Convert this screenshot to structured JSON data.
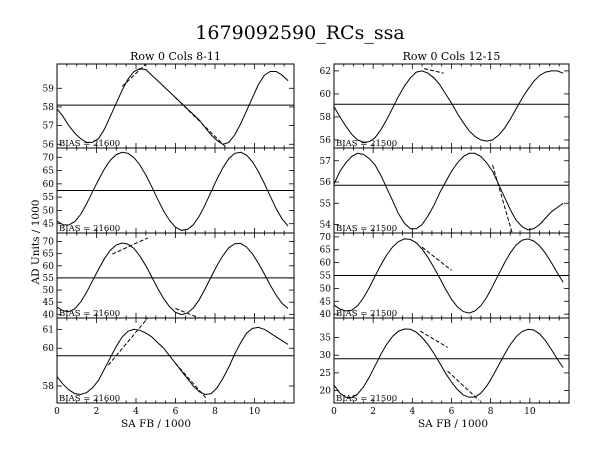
{
  "figure": {
    "title": "1679092590_RCs_ssa",
    "ylabel": "AD Units / 1000",
    "xlabel": "SA FB / 1000"
  },
  "chart_data": [
    {
      "type": "line",
      "column": "left",
      "subtitle": "Row   0   Cols   8-11",
      "bias_label": "BIAS = 21600",
      "xlim": [
        0,
        12
      ],
      "x_ticks": [
        0,
        2,
        4,
        6,
        8,
        10
      ],
      "ylim": [
        55.8,
        60.3
      ],
      "y_ticks": [
        56,
        57,
        58,
        59
      ],
      "reference_y": 58.1,
      "series": [
        {
          "x": [
            0,
            0.3,
            0.6,
            0.9,
            1.2,
            1.5,
            1.8,
            2.1,
            2.4,
            2.7,
            3.0,
            3.3,
            3.6,
            3.9,
            4.2,
            4.5,
            4.8,
            5.1,
            5.4,
            5.7,
            6.0,
            6.3,
            6.6,
            6.9,
            7.2,
            7.5,
            7.8,
            8.1,
            8.4,
            8.7,
            9.0,
            9.3,
            9.6,
            9.9,
            10.2,
            10.5,
            10.8,
            11.1,
            11.4,
            11.7
          ],
          "y": [
            57.9,
            57.5,
            57.0,
            56.6,
            56.3,
            56.1,
            56.1,
            56.3,
            56.8,
            57.5,
            58.2,
            58.9,
            59.5,
            59.9,
            60.05,
            60.0,
            59.7,
            59.4,
            59.1,
            58.8,
            58.5,
            58.2,
            57.9,
            57.6,
            57.3,
            56.9,
            56.5,
            56.2,
            56.0,
            56.1,
            56.5,
            57.1,
            57.8,
            58.5,
            59.2,
            59.7,
            59.9,
            59.9,
            59.7,
            59.4
          ]
        },
        {
          "x": [
            3.3,
            4.5
          ],
          "y": [
            59.1,
            60.3
          ],
          "dashed": true
        },
        {
          "x": [
            6.0,
            8.6
          ],
          "y": [
            58.5,
            55.8
          ],
          "dashed": true
        }
      ]
    },
    {
      "type": "line",
      "column": "left",
      "bias_label": "BIAS = 21600",
      "xlim": [
        0,
        12
      ],
      "x_ticks": [
        0,
        2,
        4,
        6,
        8,
        10
      ],
      "ylim": [
        41.5,
        73.5
      ],
      "y_ticks": [
        45,
        50,
        55,
        60,
        65,
        70
      ],
      "reference_y": 57.5,
      "series": [
        {
          "x": [
            0,
            0.3,
            0.6,
            0.9,
            1.2,
            1.5,
            1.8,
            2.1,
            2.4,
            2.7,
            3.0,
            3.3,
            3.6,
            3.9,
            4.2,
            4.5,
            4.8,
            5.1,
            5.4,
            5.7,
            6.0,
            6.3,
            6.6,
            6.9,
            7.2,
            7.5,
            7.8,
            8.1,
            8.4,
            8.7,
            9.0,
            9.3,
            9.6,
            9.9,
            10.2,
            10.5,
            10.8,
            11.1,
            11.4,
            11.7
          ],
          "y": [
            46,
            44.6,
            44.5,
            45.8,
            48.5,
            52.5,
            57,
            61.5,
            65.6,
            68.9,
            71,
            71.9,
            71.5,
            69.9,
            67.1,
            63.3,
            58.9,
            54.2,
            49.8,
            46.2,
            43.7,
            42.5,
            42.8,
            44.6,
            47.8,
            52.1,
            57,
            61.8,
            66.1,
            69.5,
            71.5,
            71.9,
            70.8,
            68.3,
            64.6,
            60.1,
            55.3,
            50.6,
            46.8,
            44.1
          ]
        }
      ]
    },
    {
      "type": "line",
      "column": "left",
      "bias_label": "BIAS = 21600",
      "xlim": [
        0,
        12
      ],
      "x_ticks": [
        0,
        2,
        4,
        6,
        8,
        10
      ],
      "ylim": [
        38.5,
        73.5
      ],
      "y_ticks": [
        40,
        45,
        50,
        55,
        60,
        65,
        70
      ],
      "reference_y": 55,
      "series": [
        {
          "x": [
            0,
            0.3,
            0.6,
            0.9,
            1.2,
            1.5,
            1.8,
            2.1,
            2.4,
            2.7,
            3.0,
            3.3,
            3.6,
            3.9,
            4.2,
            4.5,
            4.8,
            5.1,
            5.4,
            5.7,
            6.0,
            6.3,
            6.6,
            6.9,
            7.2,
            7.5,
            7.8,
            8.1,
            8.4,
            8.7,
            9.0,
            9.3,
            9.6,
            9.9,
            10.2,
            10.5,
            10.8,
            11.1,
            11.4,
            11.7
          ],
          "y": [
            43,
            41.5,
            41.1,
            42.3,
            45.1,
            49.1,
            53.8,
            58.5,
            62.9,
            66.4,
            68.6,
            69.4,
            68.9,
            67.1,
            64,
            60,
            55.4,
            50.7,
            46.5,
            43.1,
            40.8,
            39.9,
            40.5,
            42.6,
            46,
            50.5,
            55.4,
            60.1,
            64.2,
            67.4,
            69.1,
            69.2,
            67.7,
            64.9,
            61,
            56.6,
            52,
            47.8,
            44.5,
            42.4
          ]
        },
        {
          "x": [
            2.8,
            4.6
          ],
          "y": [
            64.8,
            71.5
          ],
          "dashed": true
        },
        {
          "x": [
            6.0,
            7.2
          ],
          "y": [
            42.4,
            38.5
          ],
          "dashed": true
        }
      ]
    },
    {
      "type": "line",
      "column": "left",
      "bias_label": "BIAS = 21600",
      "xlim": [
        0,
        12
      ],
      "x_ticks": [
        0,
        2,
        4,
        6,
        8,
        10
      ],
      "ylim": [
        57.1,
        61.6
      ],
      "y_ticks": [
        58,
        60,
        61
      ],
      "reference_y": 59.6,
      "series": [
        {
          "x": [
            0,
            0.3,
            0.6,
            0.9,
            1.2,
            1.5,
            1.8,
            2.1,
            2.4,
            2.7,
            3.0,
            3.3,
            3.6,
            3.9,
            4.2,
            4.5,
            4.8,
            5.1,
            5.4,
            5.7,
            6.0,
            6.3,
            6.6,
            6.9,
            7.2,
            7.5,
            7.8,
            8.1,
            8.4,
            8.7,
            9.0,
            9.3,
            9.6,
            9.9,
            10.2,
            10.5,
            10.8,
            11.1,
            11.4,
            11.7
          ],
          "y": [
            58.5,
            58.1,
            57.8,
            57.6,
            57.55,
            57.65,
            57.9,
            58.3,
            58.9,
            59.5,
            60.1,
            60.6,
            60.9,
            61.0,
            60.95,
            60.8,
            60.6,
            60.3,
            60.0,
            59.6,
            59.2,
            58.8,
            58.4,
            58.0,
            57.7,
            57.55,
            57.6,
            57.9,
            58.4,
            59.0,
            59.7,
            60.3,
            60.8,
            61.05,
            61.1,
            61.0,
            60.8,
            60.6,
            60.4,
            60.2
          ]
        },
        {
          "x": [
            2.6,
            4.6
          ],
          "y": [
            59.1,
            61.6
          ],
          "dashed": true
        },
        {
          "x": [
            6.0,
            7.6
          ],
          "y": [
            59.2,
            57.3
          ],
          "dashed": true
        }
      ]
    },
    {
      "type": "line",
      "column": "right",
      "subtitle": "Row   0   Cols   12-15",
      "bias_label": "BIAS = 21500",
      "xlim": [
        0,
        12
      ],
      "x_ticks": [
        0,
        2,
        4,
        6,
        8,
        10
      ],
      "ylim": [
        55.3,
        62.6
      ],
      "y_ticks": [
        56,
        58,
        60,
        62
      ],
      "reference_y": 59.1,
      "series": [
        {
          "x": [
            0,
            0.3,
            0.6,
            0.9,
            1.2,
            1.5,
            1.8,
            2.1,
            2.4,
            2.7,
            3.0,
            3.3,
            3.6,
            3.9,
            4.2,
            4.5,
            4.8,
            5.1,
            5.4,
            5.7,
            6.0,
            6.3,
            6.6,
            6.9,
            7.2,
            7.5,
            7.8,
            8.1,
            8.4,
            8.7,
            9.0,
            9.3,
            9.6,
            9.9,
            10.2,
            10.5,
            10.8,
            11.1,
            11.4,
            11.7
          ],
          "y": [
            58.9,
            58.0,
            57.2,
            56.5,
            56.0,
            55.8,
            55.85,
            56.2,
            56.9,
            57.8,
            58.8,
            59.8,
            60.7,
            61.4,
            61.9,
            62.0,
            61.8,
            61.4,
            60.8,
            60.0,
            59.2,
            58.3,
            57.5,
            56.8,
            56.3,
            56.0,
            55.9,
            56.0,
            56.4,
            57.0,
            57.8,
            58.7,
            59.6,
            60.4,
            61.1,
            61.6,
            61.9,
            62.0,
            62.0,
            61.8
          ]
        },
        {
          "x": [
            4.6,
            5.6
          ],
          "y": [
            62.2,
            61.8
          ],
          "dashed": true
        }
      ]
    },
    {
      "type": "line",
      "column": "right",
      "bias_label": "BIAS = 21500",
      "xlim": [
        0,
        12
      ],
      "x_ticks": [
        0,
        2,
        4,
        6,
        8,
        10
      ],
      "ylim": [
        53.6,
        57.6
      ],
      "y_ticks": [
        54,
        55,
        56,
        57
      ],
      "reference_y": 55.85,
      "series": [
        {
          "x": [
            0,
            0.3,
            0.6,
            0.9,
            1.2,
            1.5,
            1.8,
            2.1,
            2.4,
            2.7,
            3.0,
            3.3,
            3.6,
            3.9,
            4.2,
            4.5,
            4.8,
            5.1,
            5.4,
            5.7,
            6.0,
            6.3,
            6.6,
            6.9,
            7.2,
            7.5,
            7.8,
            8.1,
            8.4,
            8.7,
            9.0,
            9.3,
            9.6,
            9.9,
            10.2,
            10.5,
            10.8,
            11.1,
            11.4,
            11.7
          ],
          "y": [
            55.9,
            56.5,
            56.9,
            57.2,
            57.35,
            57.3,
            57.1,
            56.8,
            56.3,
            55.7,
            55.1,
            54.5,
            54.05,
            53.8,
            53.8,
            54.0,
            54.4,
            54.9,
            55.5,
            56.0,
            56.5,
            56.9,
            57.2,
            57.35,
            57.35,
            57.2,
            56.9,
            56.5,
            55.9,
            55.3,
            54.7,
            54.2,
            53.9,
            53.75,
            53.8,
            54.0,
            54.3,
            54.6,
            54.8,
            55.0
          ]
        },
        {
          "x": [
            8.1,
            9.1
          ],
          "y": [
            56.8,
            53.6
          ],
          "dashed": true
        }
      ]
    },
    {
      "type": "line",
      "column": "right",
      "bias_label": "BIAS = 21500",
      "xlim": [
        0,
        12
      ],
      "x_ticks": [
        0,
        2,
        4,
        6,
        8,
        10
      ],
      "ylim": [
        38.5,
        71.5
      ],
      "y_ticks": [
        40,
        45,
        50,
        55,
        60,
        65,
        70
      ],
      "reference_y": 55,
      "series": [
        {
          "x": [
            0,
            0.3,
            0.6,
            0.9,
            1.2,
            1.5,
            1.8,
            2.1,
            2.4,
            2.7,
            3.0,
            3.3,
            3.6,
            3.9,
            4.2,
            4.5,
            4.8,
            5.1,
            5.4,
            5.7,
            6.0,
            6.3,
            6.6,
            6.9,
            7.2,
            7.5,
            7.8,
            8.1,
            8.4,
            8.7,
            9.0,
            9.3,
            9.6,
            9.9,
            10.2,
            10.5,
            10.8,
            11.1,
            11.4,
            11.7
          ],
          "y": [
            43.5,
            42.0,
            41.2,
            41.5,
            43.2,
            46.3,
            50.3,
            54.8,
            59.2,
            63.1,
            66.2,
            68.2,
            69.2,
            69.0,
            67.7,
            65.3,
            62.0,
            58.1,
            53.9,
            49.7,
            45.8,
            42.8,
            41.0,
            40.4,
            41.2,
            43.3,
            46.6,
            50.8,
            55.3,
            59.8,
            63.8,
            66.8,
            68.7,
            69.2,
            68.4,
            66.5,
            63.6,
            60.0,
            56.1,
            52.4
          ]
        },
        {
          "x": [
            4.5,
            6.0
          ],
          "y": [
            66.0,
            57.0
          ],
          "dashed": true
        }
      ]
    },
    {
      "type": "line",
      "column": "right",
      "bias_label": "BIAS = 21500",
      "xlim": [
        0,
        12
      ],
      "x_ticks": [
        0,
        2,
        4,
        6,
        8,
        10
      ],
      "ylim": [
        16.5,
        40.5
      ],
      "y_ticks": [
        20,
        25,
        30,
        35
      ],
      "reference_y": 29,
      "series": [
        {
          "x": [
            0,
            0.3,
            0.6,
            0.9,
            1.2,
            1.5,
            1.8,
            2.1,
            2.4,
            2.7,
            3.0,
            3.3,
            3.6,
            3.9,
            4.2,
            4.5,
            4.8,
            5.1,
            5.4,
            5.7,
            6.0,
            6.3,
            6.6,
            6.9,
            7.2,
            7.5,
            7.8,
            8.1,
            8.4,
            8.7,
            9.0,
            9.3,
            9.6,
            9.9,
            10.2,
            10.5,
            10.8,
            11.1,
            11.4,
            11.7
          ],
          "y": [
            21.5,
            19.3,
            18.1,
            18.0,
            19.0,
            21.0,
            23.8,
            27.0,
            30.3,
            33.2,
            35.4,
            36.8,
            37.4,
            37.3,
            36.5,
            35.0,
            33.0,
            30.5,
            27.7,
            24.9,
            22.4,
            20.3,
            18.8,
            18.1,
            18.2,
            19.3,
            21.3,
            24.0,
            27.1,
            30.2,
            33.0,
            35.2,
            36.7,
            37.3,
            37.1,
            36.0,
            34.1,
            31.6,
            28.9,
            26.5
          ]
        },
        {
          "x": [
            4.4,
            5.8
          ],
          "y": [
            36.8,
            32.2
          ],
          "dashed": true
        },
        {
          "x": [
            5.8,
            7.4
          ],
          "y": [
            25.5,
            17.3
          ],
          "dashed": true
        }
      ]
    }
  ]
}
